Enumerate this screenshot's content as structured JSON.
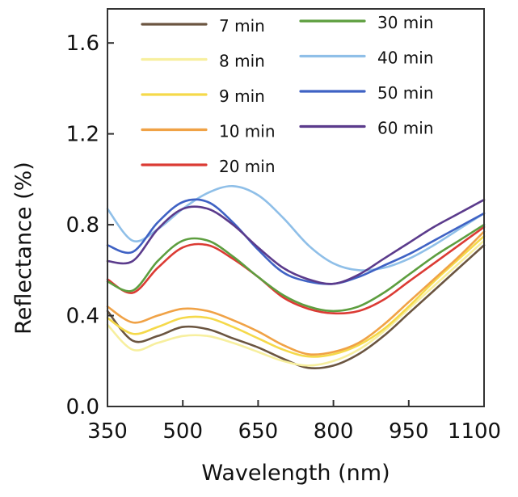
{
  "chart_data": {
    "type": "line",
    "title": "",
    "xlabel": "Wavelength (nm)",
    "ylabel": "Reflectance (%)",
    "xlim": [
      350,
      1100
    ],
    "ylim": [
      0.0,
      1.75
    ],
    "xticks": [
      350,
      500,
      650,
      800,
      950,
      1100
    ],
    "xtick_labels": [
      "350",
      "500",
      "650",
      "800",
      "950",
      "1100"
    ],
    "yticks": [
      0.0,
      0.4,
      0.8,
      1.2,
      1.6
    ],
    "ytick_labels": [
      "0.0",
      "0.4",
      "0.8",
      "1.2",
      "1.6"
    ],
    "grid": false,
    "legend_position": "top",
    "x": [
      350,
      400,
      450,
      500,
      550,
      600,
      650,
      700,
      750,
      800,
      850,
      900,
      950,
      1000,
      1050,
      1100
    ],
    "series": [
      {
        "name": "7 min",
        "color": "#6b5540",
        "values": [
          0.42,
          0.29,
          0.31,
          0.35,
          0.34,
          0.3,
          0.26,
          0.21,
          0.17,
          0.18,
          0.23,
          0.31,
          0.41,
          0.51,
          0.61,
          0.71
        ]
      },
      {
        "name": "8 min",
        "color": "#f7ef9e",
        "values": [
          0.36,
          0.25,
          0.28,
          0.31,
          0.31,
          0.28,
          0.24,
          0.2,
          0.18,
          0.2,
          0.25,
          0.33,
          0.43,
          0.53,
          0.63,
          0.73
        ]
      },
      {
        "name": "9 min",
        "color": "#f5d94a",
        "values": [
          0.39,
          0.32,
          0.35,
          0.39,
          0.39,
          0.35,
          0.3,
          0.25,
          0.22,
          0.23,
          0.27,
          0.34,
          0.44,
          0.55,
          0.65,
          0.75
        ]
      },
      {
        "name": "10 min",
        "color": "#f0a246",
        "values": [
          0.44,
          0.37,
          0.4,
          0.43,
          0.42,
          0.38,
          0.33,
          0.27,
          0.23,
          0.24,
          0.28,
          0.36,
          0.46,
          0.56,
          0.66,
          0.77
        ]
      },
      {
        "name": "20 min",
        "color": "#db3b34",
        "values": [
          0.56,
          0.5,
          0.61,
          0.7,
          0.71,
          0.65,
          0.57,
          0.48,
          0.43,
          0.41,
          0.42,
          0.47,
          0.55,
          0.63,
          0.71,
          0.79
        ]
      },
      {
        "name": "30 min",
        "color": "#5d9e3f",
        "values": [
          0.55,
          0.51,
          0.64,
          0.73,
          0.73,
          0.66,
          0.57,
          0.49,
          0.44,
          0.42,
          0.44,
          0.5,
          0.58,
          0.66,
          0.73,
          0.8
        ]
      },
      {
        "name": "40 min",
        "color": "#8fbfe8",
        "values": [
          0.87,
          0.73,
          0.78,
          0.87,
          0.94,
          0.97,
          0.93,
          0.83,
          0.71,
          0.63,
          0.6,
          0.61,
          0.65,
          0.71,
          0.78,
          0.85
        ]
      },
      {
        "name": "50 min",
        "color": "#3f62c4",
        "values": [
          0.71,
          0.68,
          0.81,
          0.9,
          0.9,
          0.81,
          0.69,
          0.59,
          0.55,
          0.54,
          0.57,
          0.62,
          0.67,
          0.73,
          0.79,
          0.85
        ]
      },
      {
        "name": "60 min",
        "color": "#5b3b8c",
        "values": [
          0.64,
          0.64,
          0.78,
          0.87,
          0.87,
          0.8,
          0.7,
          0.61,
          0.56,
          0.54,
          0.58,
          0.65,
          0.72,
          0.79,
          0.85,
          0.91
        ]
      }
    ]
  }
}
